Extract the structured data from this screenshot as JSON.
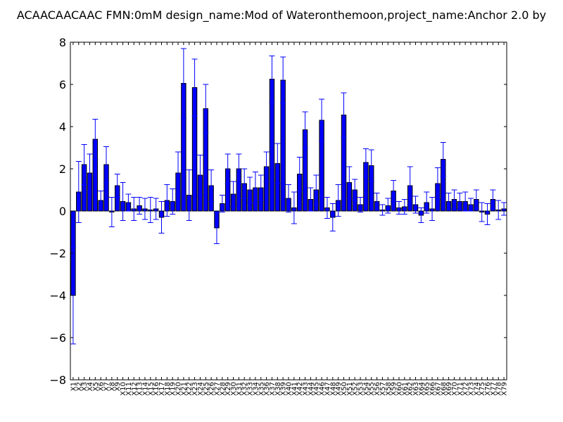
{
  "chart_data": {
    "type": "bar",
    "title": "ACAACAACAAC  FMN:0mM  design_name:Mod of Wateronthemoon,project_name:Anchor 2.0 by",
    "xlabel": "",
    "ylabel": "",
    "ylim": [
      -8,
      8
    ],
    "yticks": [
      -8,
      -6,
      -4,
      -2,
      0,
      2,
      4,
      6,
      8
    ],
    "grid": false,
    "bar_color": "#0000ff",
    "error_color": "#0000ff",
    "categories": [
      "X1",
      "X2",
      "X3",
      "X4",
      "X5",
      "X6",
      "X7",
      "X8",
      "X9",
      "X10",
      "X11",
      "X12",
      "X13",
      "X14",
      "X15",
      "X16",
      "X17",
      "X18",
      "X19",
      "X20",
      "X21",
      "X22",
      "X23",
      "X24",
      "X25",
      "X26",
      "X27",
      "X28",
      "X29",
      "X30",
      "X31",
      "X32",
      "X33",
      "X34",
      "X35",
      "X36",
      "X37",
      "X38",
      "X39",
      "X40",
      "X41",
      "X42",
      "X43",
      "X44",
      "X45",
      "X46",
      "X47",
      "X48",
      "X49",
      "X50",
      "X51",
      "X52",
      "X53",
      "X54",
      "X55",
      "X56",
      "X57",
      "X58",
      "X59",
      "X60",
      "X61",
      "X62",
      "X63",
      "X64",
      "X65",
      "X66",
      "X67",
      "X68",
      "X69",
      "X70",
      "X71",
      "X72",
      "X73",
      "X74",
      "X75",
      "X76",
      "X77",
      "X78",
      "X79"
    ],
    "values": [
      -4.0,
      0.9,
      2.2,
      1.8,
      3.4,
      0.5,
      2.2,
      -0.05,
      1.2,
      0.45,
      0.4,
      0.1,
      0.25,
      0.1,
      0.05,
      0.1,
      -0.3,
      0.5,
      0.45,
      1.8,
      6.05,
      0.75,
      5.85,
      1.7,
      4.85,
      1.2,
      -0.8,
      0.35,
      2.0,
      0.8,
      2.0,
      1.3,
      1.0,
      1.1,
      1.1,
      2.1,
      6.25,
      2.25,
      6.2,
      0.6,
      0.15,
      1.75,
      3.85,
      0.55,
      1.0,
      4.3,
      0.15,
      -0.3,
      0.5,
      4.55,
      1.35,
      1.0,
      0.3,
      2.3,
      2.15,
      0.45,
      0.05,
      0.25,
      0.95,
      0.15,
      0.2,
      1.2,
      0.3,
      -0.2,
      0.4,
      0.1,
      1.3,
      2.45,
      0.45,
      0.55,
      0.45,
      0.45,
      0.3,
      0.55,
      -0.05,
      -0.15,
      0.55,
      0.05,
      0.1
    ],
    "errors": [
      2.3,
      1.45,
      0.95,
      0.9,
      0.95,
      0.45,
      0.85,
      0.7,
      0.55,
      0.9,
      0.4,
      0.55,
      0.4,
      0.5,
      0.6,
      0.5,
      0.75,
      0.75,
      0.6,
      1.0,
      1.65,
      1.2,
      1.35,
      0.95,
      1.15,
      0.75,
      0.75,
      0.4,
      0.7,
      0.6,
      0.7,
      0.7,
      0.6,
      0.75,
      0.6,
      0.7,
      1.1,
      0.95,
      1.1,
      0.65,
      0.75,
      0.8,
      0.85,
      0.55,
      0.7,
      1.0,
      0.5,
      0.65,
      0.75,
      1.05,
      0.75,
      0.5,
      0.35,
      0.65,
      0.75,
      0.4,
      0.25,
      0.35,
      0.5,
      0.3,
      0.35,
      0.9,
      0.4,
      0.35,
      0.5,
      0.55,
      0.75,
      0.8,
      0.4,
      0.45,
      0.4,
      0.45,
      0.3,
      0.45,
      0.45,
      0.5,
      0.45,
      0.45,
      0.3
    ]
  }
}
